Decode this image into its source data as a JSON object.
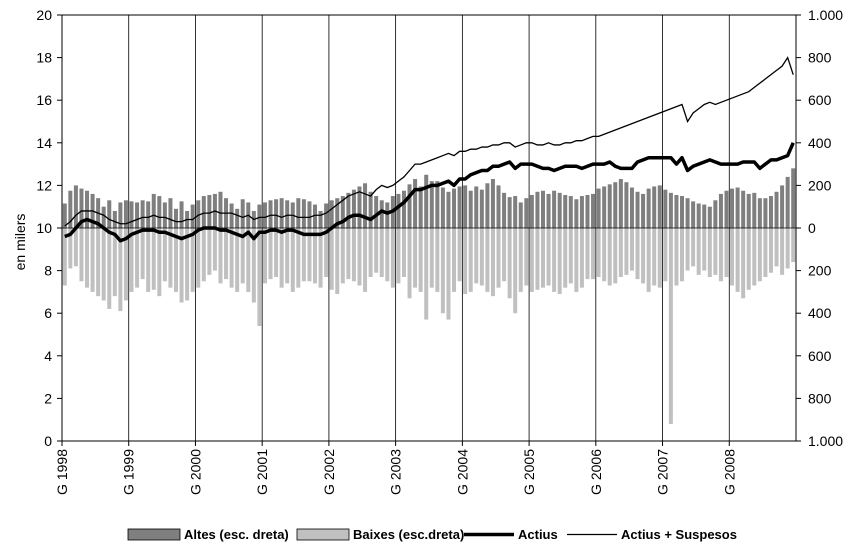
{
  "chart_data": {
    "type": "bar",
    "title": "",
    "ylabel": "en milers",
    "ylabel_right": "",
    "ylim": [
      0,
      20
    ],
    "y2lim": [
      -1000,
      1000
    ],
    "y2_ticks": [
      {
        "value": 1000,
        "label": "1.000"
      },
      {
        "value": 800,
        "label": "800"
      },
      {
        "value": 600,
        "label": "600"
      },
      {
        "value": 400,
        "label": "400"
      },
      {
        "value": 200,
        "label": "200"
      },
      {
        "value": 0,
        "label": "0"
      },
      {
        "value": -200,
        "label": "200"
      },
      {
        "value": -400,
        "label": "400"
      },
      {
        "value": -600,
        "label": "600"
      },
      {
        "value": -800,
        "label": "800"
      },
      {
        "value": -1000,
        "label": "1.000"
      }
    ],
    "y_ticks": [
      0,
      2,
      4,
      6,
      8,
      10,
      12,
      14,
      16,
      18,
      20
    ],
    "x_tick_labels": [
      "G 1998",
      "G 1999",
      "G 2000",
      "G 2001",
      "G 2002",
      "G 2003",
      "G 2004",
      "G 2005",
      "G 2006",
      "G 2007",
      "G 2008"
    ],
    "x_start": "1998-01",
    "months": 132,
    "grid": "vertical at each January",
    "legend_position": "bottom",
    "colors": {
      "altes": "#7f7f7f",
      "baixes": "#c0c0c0",
      "actius": "#000000",
      "actius_suspesos": "#000000"
    },
    "series": [
      {
        "name": "Altes (esc. dreta)",
        "axis": "right",
        "kind": "bar",
        "values": [
          115,
          175,
          200,
          185,
          175,
          160,
          140,
          100,
          130,
          80,
          120,
          130,
          125,
          120,
          130,
          125,
          160,
          150,
          120,
          140,
          90,
          125,
          80,
          110,
          130,
          150,
          155,
          160,
          170,
          140,
          115,
          90,
          135,
          120,
          80,
          110,
          120,
          130,
          135,
          140,
          130,
          120,
          140,
          135,
          125,
          110,
          80,
          115,
          130,
          140,
          150,
          165,
          180,
          195,
          210,
          170,
          150,
          130,
          120,
          150,
          160,
          175,
          205,
          230,
          195,
          250,
          220,
          220,
          190,
          170,
          185,
          195,
          200,
          175,
          195,
          180,
          210,
          230,
          200,
          165,
          145,
          150,
          120,
          140,
          155,
          170,
          175,
          160,
          175,
          165,
          155,
          150,
          135,
          150,
          155,
          160,
          185,
          195,
          205,
          215,
          230,
          215,
          190,
          170,
          160,
          185,
          195,
          200,
          180,
          165,
          155,
          150,
          140,
          125,
          115,
          110,
          100,
          130,
          160,
          175,
          185,
          190,
          175,
          160,
          165,
          140,
          140,
          150,
          170,
          200,
          240,
          280
        ]
      },
      {
        "name": "Baixes (esc.dreta)",
        "axis": "right",
        "kind": "bar",
        "values": [
          270,
          190,
          180,
          250,
          280,
          300,
          320,
          340,
          380,
          320,
          390,
          340,
          300,
          280,
          240,
          300,
          290,
          320,
          250,
          280,
          300,
          350,
          340,
          300,
          280,
          250,
          220,
          200,
          260,
          240,
          280,
          300,
          260,
          300,
          350,
          460,
          260,
          240,
          230,
          280,
          260,
          300,
          280,
          250,
          250,
          260,
          280,
          230,
          290,
          310,
          260,
          240,
          250,
          270,
          300,
          230,
          210,
          230,
          250,
          280,
          260,
          230,
          330,
          280,
          300,
          430,
          280,
          300,
          400,
          430,
          300,
          250,
          310,
          300,
          260,
          270,
          300,
          320,
          280,
          250,
          330,
          400,
          300,
          270,
          300,
          290,
          280,
          270,
          300,
          310,
          280,
          260,
          300,
          280,
          240,
          240,
          230,
          250,
          270,
          260,
          230,
          220,
          200,
          240,
          260,
          300,
          270,
          280,
          250,
          920,
          270,
          250,
          200,
          180,
          220,
          200,
          230,
          220,
          250,
          230,
          270,
          300,
          330,
          290,
          270,
          250,
          230,
          210,
          180,
          220,
          190,
          160
        ]
      },
      {
        "name": "Actius",
        "axis": "left",
        "kind": "line",
        "values": [
          9.6,
          9.7,
          10.0,
          10.3,
          10.4,
          10.3,
          10.2,
          10.0,
          9.8,
          9.7,
          9.4,
          9.5,
          9.7,
          9.8,
          9.9,
          9.9,
          9.9,
          9.8,
          9.8,
          9.7,
          9.6,
          9.5,
          9.6,
          9.7,
          9.9,
          10.0,
          10.0,
          10.0,
          9.9,
          9.9,
          9.8,
          9.7,
          9.6,
          9.8,
          9.5,
          9.8,
          9.8,
          9.9,
          9.9,
          9.8,
          9.9,
          9.9,
          9.8,
          9.7,
          9.7,
          9.7,
          9.7,
          9.8,
          10.0,
          10.2,
          10.3,
          10.5,
          10.6,
          10.6,
          10.5,
          10.4,
          10.6,
          10.8,
          10.7,
          10.8,
          11.0,
          11.2,
          11.5,
          11.8,
          11.8,
          11.9,
          12.0,
          12.0,
          12.1,
          12.2,
          12.0,
          12.3,
          12.3,
          12.5,
          12.6,
          12.7,
          12.7,
          12.9,
          12.9,
          13.0,
          13.1,
          12.8,
          13.0,
          13.0,
          13.0,
          12.9,
          12.8,
          12.8,
          12.7,
          12.8,
          12.9,
          12.9,
          12.9,
          12.8,
          12.9,
          13.0,
          13.0,
          13.0,
          13.1,
          12.9,
          12.8,
          12.8,
          12.8,
          13.1,
          13.2,
          13.3,
          13.3,
          13.3,
          13.3,
          13.3,
          13.0,
          13.3,
          12.7,
          12.9,
          13.0,
          13.1,
          13.2,
          13.1,
          13.0,
          13.0,
          13.0,
          13.0,
          13.1,
          13.1,
          13.1,
          12.8,
          13.0,
          13.2,
          13.2,
          13.3,
          13.4,
          14.0
        ]
      },
      {
        "name": "Actius + Suspesos",
        "axis": "left",
        "kind": "line",
        "values": [
          10.1,
          10.3,
          10.6,
          10.8,
          10.8,
          10.8,
          10.7,
          10.6,
          10.4,
          10.3,
          10.2,
          10.2,
          10.3,
          10.4,
          10.5,
          10.5,
          10.6,
          10.5,
          10.5,
          10.4,
          10.3,
          10.3,
          10.4,
          10.4,
          10.6,
          10.7,
          10.7,
          10.8,
          10.7,
          10.7,
          10.7,
          10.6,
          10.5,
          10.6,
          10.4,
          10.5,
          10.5,
          10.6,
          10.6,
          10.5,
          10.6,
          10.6,
          10.5,
          10.5,
          10.5,
          10.6,
          10.6,
          10.7,
          10.9,
          11.1,
          11.3,
          11.5,
          11.6,
          11.7,
          11.6,
          11.5,
          11.8,
          12.0,
          11.9,
          12.0,
          12.2,
          12.4,
          12.7,
          13.0,
          13.0,
          13.1,
          13.2,
          13.3,
          13.4,
          13.5,
          13.4,
          13.6,
          13.6,
          13.7,
          13.7,
          13.8,
          13.8,
          13.9,
          13.9,
          14.0,
          14.0,
          13.8,
          13.9,
          14.0,
          14.0,
          13.9,
          13.9,
          14.0,
          13.9,
          13.9,
          14.0,
          14.0,
          14.1,
          14.1,
          14.2,
          14.3,
          14.3,
          14.4,
          14.5,
          14.6,
          14.7,
          14.8,
          14.9,
          15.0,
          15.1,
          15.2,
          15.3,
          15.4,
          15.5,
          15.6,
          15.7,
          15.8,
          15.0,
          15.4,
          15.6,
          15.8,
          15.9,
          15.8,
          15.9,
          16.0,
          16.1,
          16.2,
          16.3,
          16.4,
          16.6,
          16.8,
          17.0,
          17.2,
          17.4,
          17.6,
          18.0,
          17.2
        ]
      }
    ]
  }
}
